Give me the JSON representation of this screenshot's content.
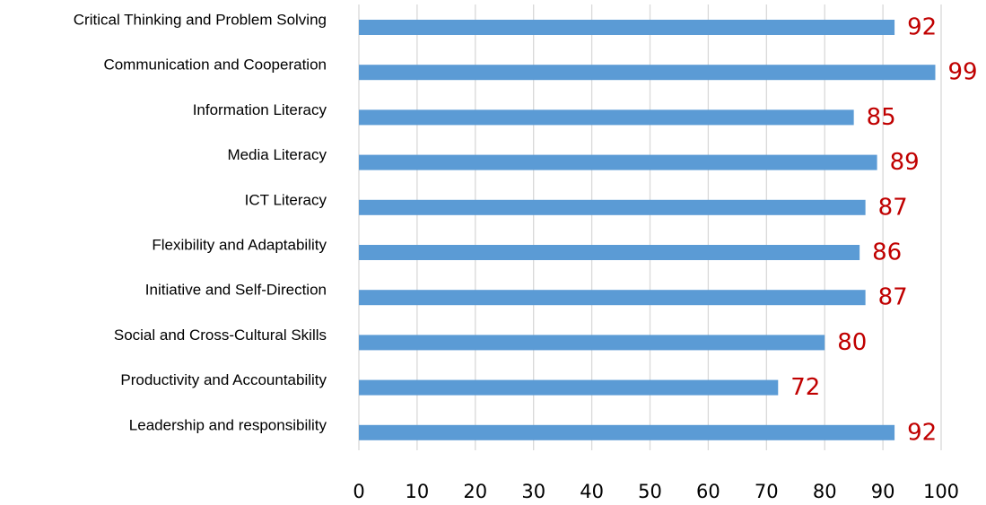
{
  "chart_data": {
    "type": "bar",
    "orientation": "horizontal",
    "title": "",
    "xlabel": "",
    "ylabel": "",
    "categories": [
      "Critical Thinking and Problem Solving",
      "Communication and Cooperation",
      "Information Literacy",
      "Media Literacy",
      "ICT Literacy",
      "Flexibility and Adaptability",
      "Initiative and Self-Direction",
      "Social and Cross-Cultural Skills",
      "Productivity and Accountability",
      "Leadership and responsibility"
    ],
    "values": [
      92,
      99,
      85,
      89,
      87,
      86,
      87,
      80,
      72,
      92
    ],
    "xlim": [
      0,
      100
    ],
    "x_ticks": [
      0,
      10,
      20,
      30,
      40,
      50,
      60,
      70,
      80,
      90,
      100
    ],
    "grid": "vertical",
    "legend": "none",
    "data_labels": true,
    "colors": {
      "bar": "#5b9bd5",
      "data_label": "#c00000",
      "grid": "#d9d9d9",
      "text": "#000000"
    }
  }
}
